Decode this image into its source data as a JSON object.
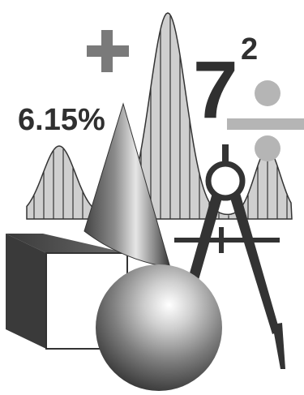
{
  "illustration": {
    "percent_text": "6.15%",
    "base_number": "7",
    "exponent": "2",
    "colors": {
      "dark": "#333333",
      "mid_gray": "#9a9a9a",
      "light_gray": "#c2c2c2",
      "curve_fill": "#cfcfcf",
      "background": "#ffffff"
    },
    "icons": {
      "plus": "plus-icon",
      "division": "division-icon",
      "compass": "compass-icon",
      "cone": "cone-icon",
      "cube": "cube-icon",
      "sphere": "sphere-icon",
      "bell_curve": "bell-curve-icon"
    }
  }
}
